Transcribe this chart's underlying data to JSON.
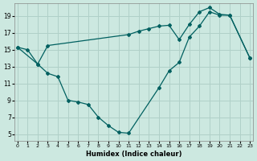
{
  "xlabel": "Humidex (Indice chaleur)",
  "bg_color": "#cce8e0",
  "grid_color": "#b0d0c8",
  "line_color": "#006060",
  "x_ticks": [
    0,
    1,
    2,
    3,
    4,
    5,
    6,
    7,
    8,
    9,
    10,
    11,
    12,
    13,
    14,
    15,
    16,
    17,
    18,
    19,
    20,
    21,
    22,
    23
  ],
  "y_ticks": [
    5,
    7,
    9,
    11,
    13,
    15,
    17,
    19
  ],
  "xlim": [
    -0.3,
    23.3
  ],
  "ylim": [
    4.2,
    20.5
  ],
  "line1_x": [
    0,
    1,
    2,
    3,
    4,
    5,
    6,
    7,
    8,
    9,
    10,
    11,
    14,
    15,
    16,
    17,
    18,
    19,
    20,
    21,
    23
  ],
  "line1_y": [
    15.3,
    15.0,
    13.3,
    12.2,
    11.8,
    9.0,
    8.8,
    8.5,
    7.0,
    6.0,
    5.2,
    5.1,
    10.5,
    12.5,
    13.5,
    16.5,
    17.8,
    19.5,
    19.1,
    19.1,
    14.0
  ],
  "line2_x": [
    0,
    2,
    3,
    11,
    12,
    13,
    14,
    15,
    16,
    17,
    18,
    19,
    20,
    21,
    23
  ],
  "line2_y": [
    15.3,
    13.3,
    15.5,
    16.8,
    17.2,
    17.5,
    17.8,
    17.9,
    16.2,
    18.0,
    19.5,
    20.0,
    19.2,
    19.1,
    14.0
  ]
}
